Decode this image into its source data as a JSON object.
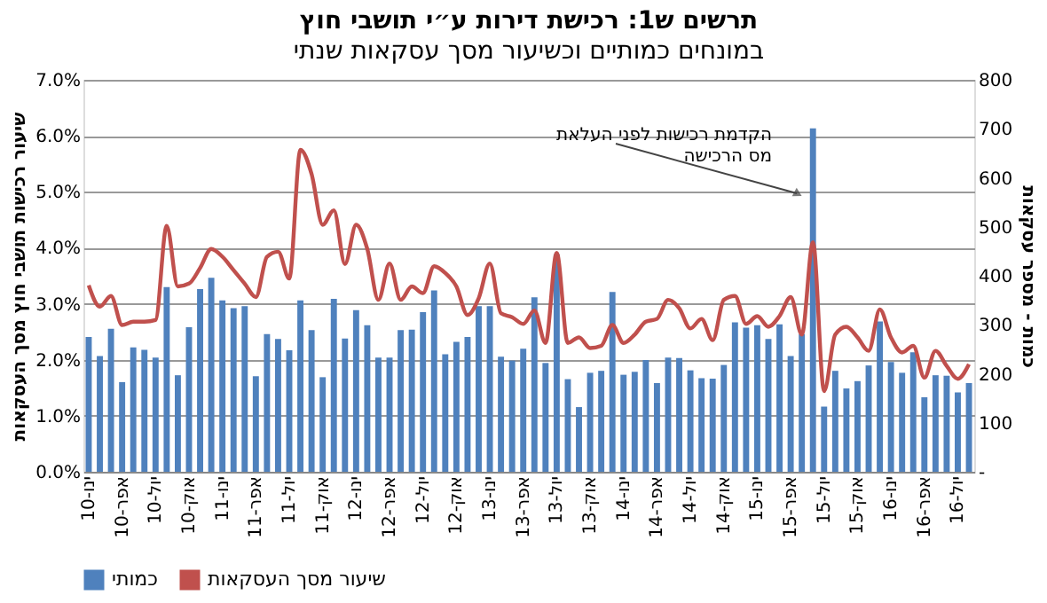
{
  "chart_data": {
    "type": "bar",
    "title": "תרשים ש1: רכישת דירות ע״י תושבי חוץ",
    "subtitle": "במונחים כמותיים וכשיעור מסך עסקאות שנתי",
    "ylabel": "שיעור רכישות תושבי חוץ מסך העסקאות",
    "y2label": "כמות - מספר עסקאות",
    "categories": [
      "ינו-10",
      null,
      null,
      "אפר-10",
      null,
      null,
      "יול-10",
      null,
      null,
      "אוק-10",
      null,
      null,
      "ינו-11",
      null,
      null,
      "אפר-11",
      null,
      null,
      "יול-11",
      null,
      null,
      "אוק-11",
      null,
      null,
      "ינו-12",
      null,
      null,
      "אפר-12",
      null,
      null,
      "יול-12",
      null,
      null,
      "אוק-12",
      null,
      null,
      "ינו-13",
      null,
      null,
      "אפר-13",
      null,
      null,
      "יול-13",
      null,
      null,
      "אוק-13",
      null,
      null,
      "ינו-14",
      null,
      null,
      "אפר-14",
      null,
      null,
      "יול-14",
      null,
      null,
      "אוק-14",
      null,
      null,
      "ינו-15",
      null,
      null,
      "אפר-15",
      null,
      null,
      "יול-15",
      null,
      null,
      "אוק-15",
      null,
      null,
      "ינו-16",
      null,
      null,
      "אפר-16",
      null,
      null,
      "יול-16",
      null
    ],
    "series": [
      {
        "name": "כמותי",
        "axis": "y2",
        "color": "#4f81bd",
        "values": [
          275,
          236,
          292,
          183,
          254,
          249,
          233,
          377,
          197,
          295,
          373,
          396,
          350,
          334,
          338,
          195,
          281,
          271,
          248,
          350,
          289,
          193,
          353,
          272,
          330,
          299,
          233,
          233,
          289,
          290,
          326,
          370,
          240,
          265,
          275,
          338,
          338,
          235,
          227,
          251,
          356,
          222,
          444,
          189,
          132,
          202,
          206,
          367,
          198,
          204,
          228,
          181,
          233,
          232,
          207,
          191,
          190,
          218,
          305,
          294,
          299,
          271,
          301,
          236,
          281,
          701,
          133,
          206,
          170,
          185,
          217,
          307,
          224,
          202,
          244,
          152,
          197,
          196,
          162,
          181
        ]
      },
      {
        "name": "שיעור מסך העסקאות",
        "type": "line",
        "axis": "y",
        "color": "#c0504d",
        "values": [
          3.33,
          2.95,
          3.14,
          2.62,
          2.68,
          2.68,
          2.71,
          4.39,
          3.31,
          3.36,
          3.64,
          3.98,
          3.84,
          3.6,
          3.36,
          3.12,
          3.84,
          3.93,
          3.45,
          5.75,
          5.32,
          4.41,
          4.67,
          3.71,
          4.41,
          3.98,
          3.07,
          3.72,
          3.07,
          3.31,
          3.19,
          3.67,
          3.55,
          3.31,
          2.8,
          3.1,
          3.72,
          2.83,
          2.76,
          2.64,
          2.88,
          2.3,
          3.91,
          2.3,
          2.4,
          2.21,
          2.25,
          2.62,
          2.3,
          2.45,
          2.68,
          2.73,
          3.07,
          2.92,
          2.56,
          2.73,
          2.35,
          3.07,
          3.14,
          2.64,
          2.78,
          2.59,
          2.78,
          3.12,
          2.45,
          4.1,
          1.44,
          2.45,
          2.59,
          2.4,
          2.16,
          2.9,
          2.4,
          2.13,
          2.25,
          1.68,
          2.16,
          1.89,
          1.66,
          1.92
        ]
      }
    ],
    "ylim": [
      0,
      7
    ],
    "yticks": [
      {
        "value": 0,
        "label": "0.0%"
      },
      {
        "value": 1,
        "label": "1.0%"
      },
      {
        "value": 2,
        "label": "2.0%"
      },
      {
        "value": 3,
        "label": "3.0%"
      },
      {
        "value": 4,
        "label": "4.0%"
      },
      {
        "value": 5,
        "label": "5.0%"
      },
      {
        "value": 6,
        "label": "6.0%"
      },
      {
        "value": 7,
        "label": "7.0%"
      }
    ],
    "y2lim": [
      0,
      800
    ],
    "y2ticks": [
      {
        "value": 0,
        "label": "-"
      },
      100,
      200,
      300,
      400,
      500,
      600,
      700,
      800
    ],
    "annotations": [
      "הקדמת רכישות לפני העלאת\nמס הרכישה"
    ],
    "grid": "y",
    "legend": "bottom",
    "marker": "none",
    "line_style": "solid"
  }
}
